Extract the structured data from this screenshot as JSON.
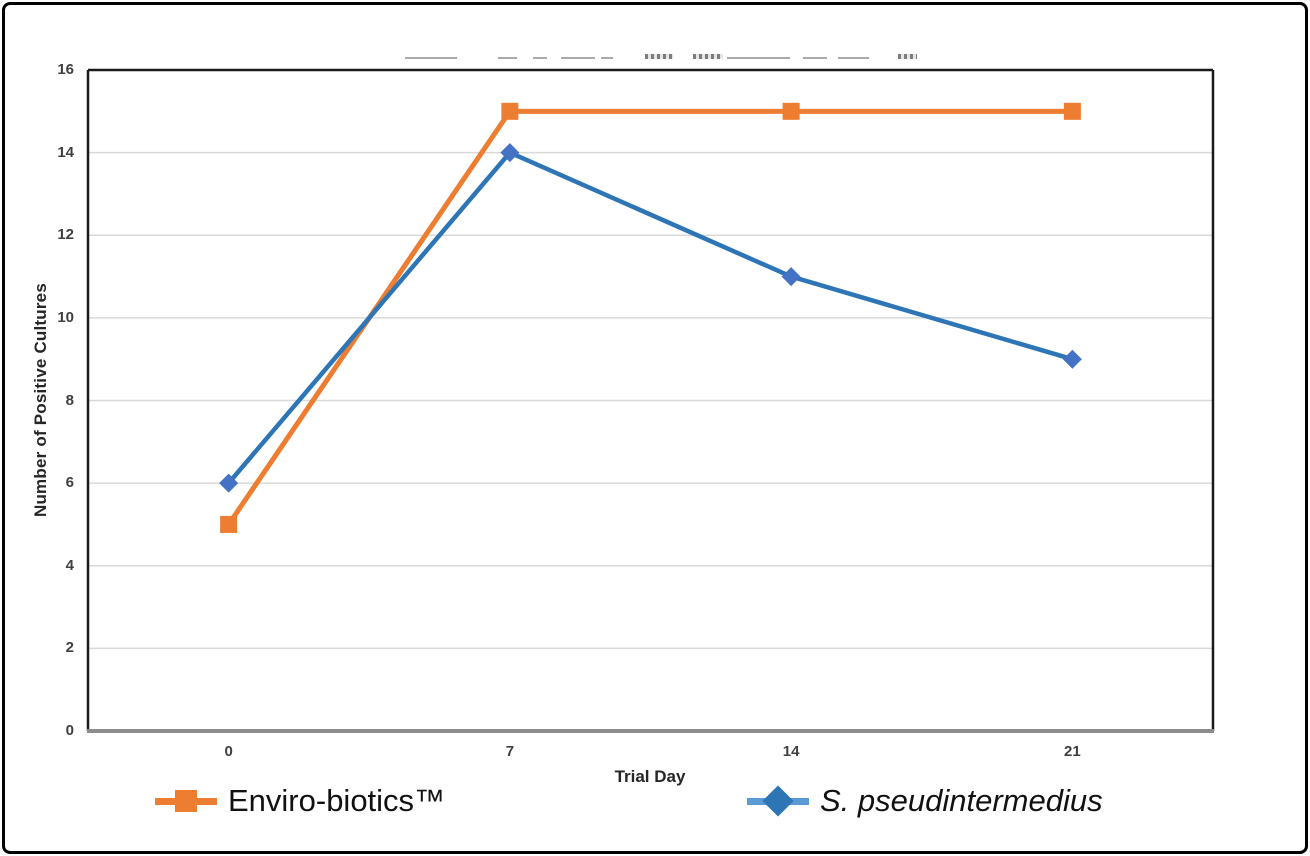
{
  "figure": {
    "background": "#FFFFFF",
    "border_color": "#000000",
    "note": "top chart title is cropped out of view"
  },
  "chart_data": {
    "type": "line",
    "xlabel": "Trial Day",
    "ylabel": "Number of Positive Cultures",
    "x_categories": [
      "0",
      "7",
      "14",
      "21"
    ],
    "ylim": [
      0,
      16
    ],
    "y_tick_step": 2,
    "y_tick_labels": [
      "0",
      "2",
      "4",
      "6",
      "8",
      "10",
      "12",
      "14",
      "16"
    ],
    "grid": "horizontal",
    "gridline_color": "#D9D9D9",
    "axis_color_left": "#1a1a1a",
    "axis_color_bottom": "#8C8C8C",
    "plot_border_color": "#1a1a1a",
    "legend_position": "bottom",
    "series": [
      {
        "name": "Enviro-biotics™",
        "values": [
          5,
          15,
          15,
          15
        ],
        "color": "#ED7D31",
        "marker": "square",
        "marker_color": "#ED7D31",
        "legend_line_color": "#ED7D31",
        "name_style": "normal"
      },
      {
        "name": "S. pseudintermedius",
        "values": [
          6,
          14,
          11,
          9
        ],
        "color": "#2E75B6",
        "marker": "diamond",
        "marker_color": "#4472C4",
        "legend_line_color": "#5B9BD5",
        "name_style": "italic"
      }
    ]
  }
}
